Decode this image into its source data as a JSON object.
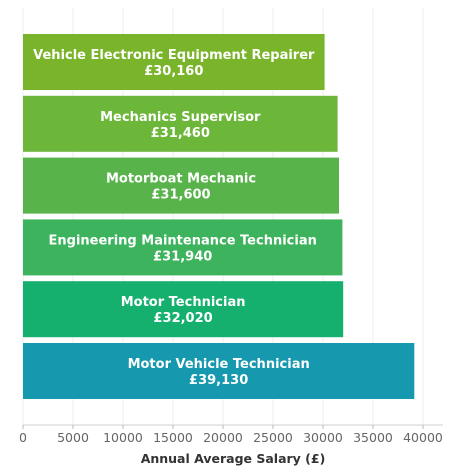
{
  "chart_data": {
    "type": "bar",
    "orientation": "horizontal",
    "title": "",
    "xlabel": "Annual Average Salary (£)",
    "ylabel": "",
    "xlim": [
      0,
      42000
    ],
    "xticks": [
      0,
      5000,
      10000,
      15000,
      20000,
      25000,
      30000,
      35000,
      40000
    ],
    "xtick_labels": [
      "0",
      "5000",
      "10000",
      "15000",
      "20000",
      "25000",
      "30000",
      "35000",
      "40000"
    ],
    "grid": true,
    "legend": "none",
    "bars": [
      {
        "label": "Vehicle Electronic Equipment Repairer",
        "value": 30160,
        "value_label": "£30,160",
        "color": "#7ab42a"
      },
      {
        "label": "Mechanics Supervisor",
        "value": 31460,
        "value_label": "£31,460",
        "color": "#6cb63a"
      },
      {
        "label": "Motorboat Mechanic",
        "value": 31600,
        "value_label": "£31,600",
        "color": "#58b44a"
      },
      {
        "label": "Engineering Maintenance Technician",
        "value": 31940,
        "value_label": "£31,940",
        "color": "#3db35d"
      },
      {
        "label": "Motor Technician",
        "value": 32020,
        "value_label": "£32,020",
        "color": "#16b06e"
      },
      {
        "label": "Motor Vehicle Technician",
        "value": 39130,
        "value_label": "£39,130",
        "color": "#1698ae"
      }
    ]
  }
}
